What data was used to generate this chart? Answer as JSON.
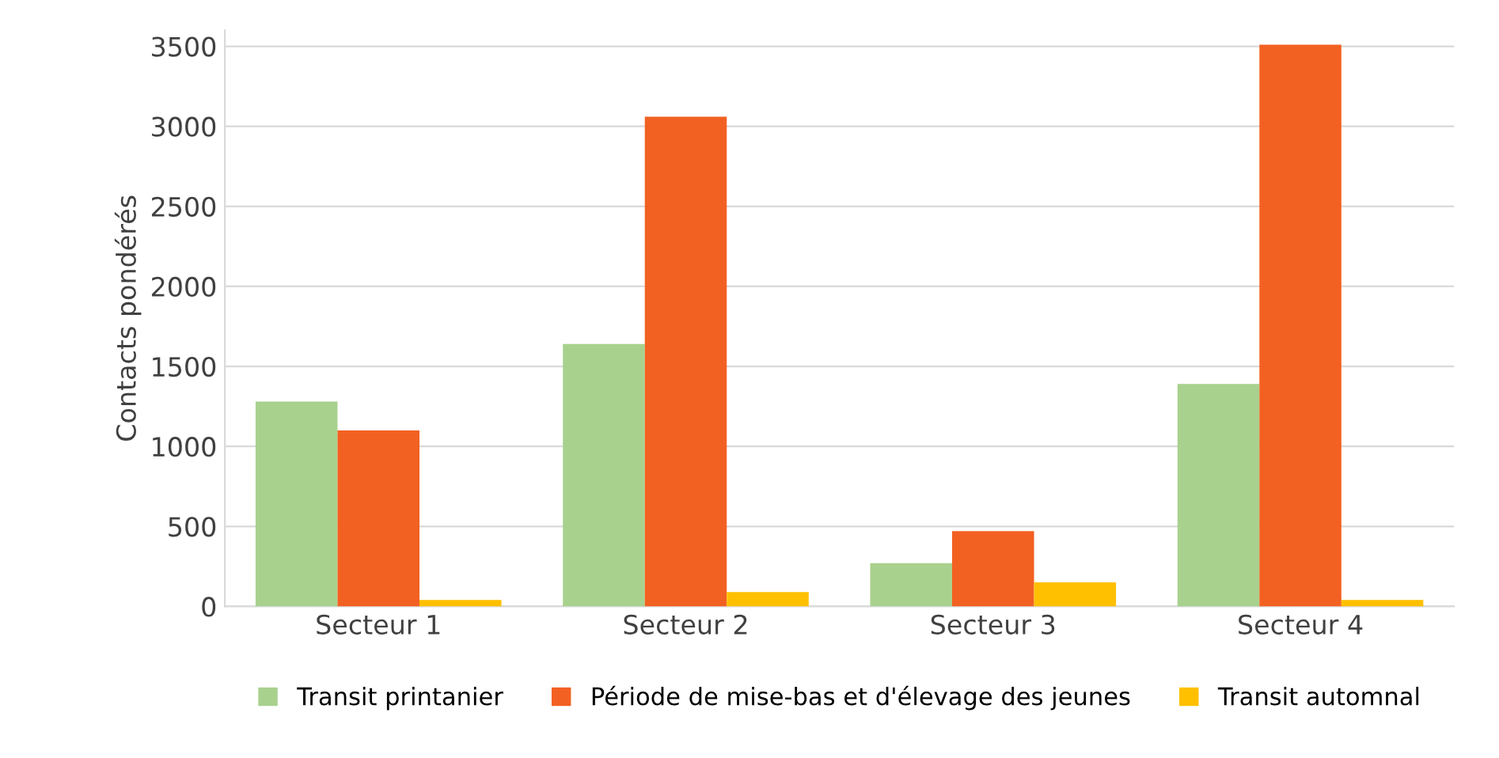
{
  "chart_data": {
    "type": "bar",
    "ylabel": "Contacts pondérés",
    "categories": [
      "Secteur 1",
      "Secteur 2",
      "Secteur 3",
      "Secteur 4"
    ],
    "series": [
      {
        "name": "Transit printanier",
        "color": "#a9d18e",
        "values": [
          1280,
          1640,
          270,
          1390
        ]
      },
      {
        "name": "Période de mise-bas et d'élevage des jeunes",
        "color": "#f26122",
        "values": [
          1100,
          3060,
          470,
          3510
        ]
      },
      {
        "name": "Transit automnal",
        "color": "#ffc000",
        "values": [
          40,
          90,
          150,
          40
        ]
      }
    ],
    "ylim": [
      0,
      3600
    ],
    "yticks": [
      0,
      500,
      1000,
      1500,
      2000,
      2500,
      3000,
      3500
    ],
    "grid": "y",
    "legend": "bottom"
  }
}
